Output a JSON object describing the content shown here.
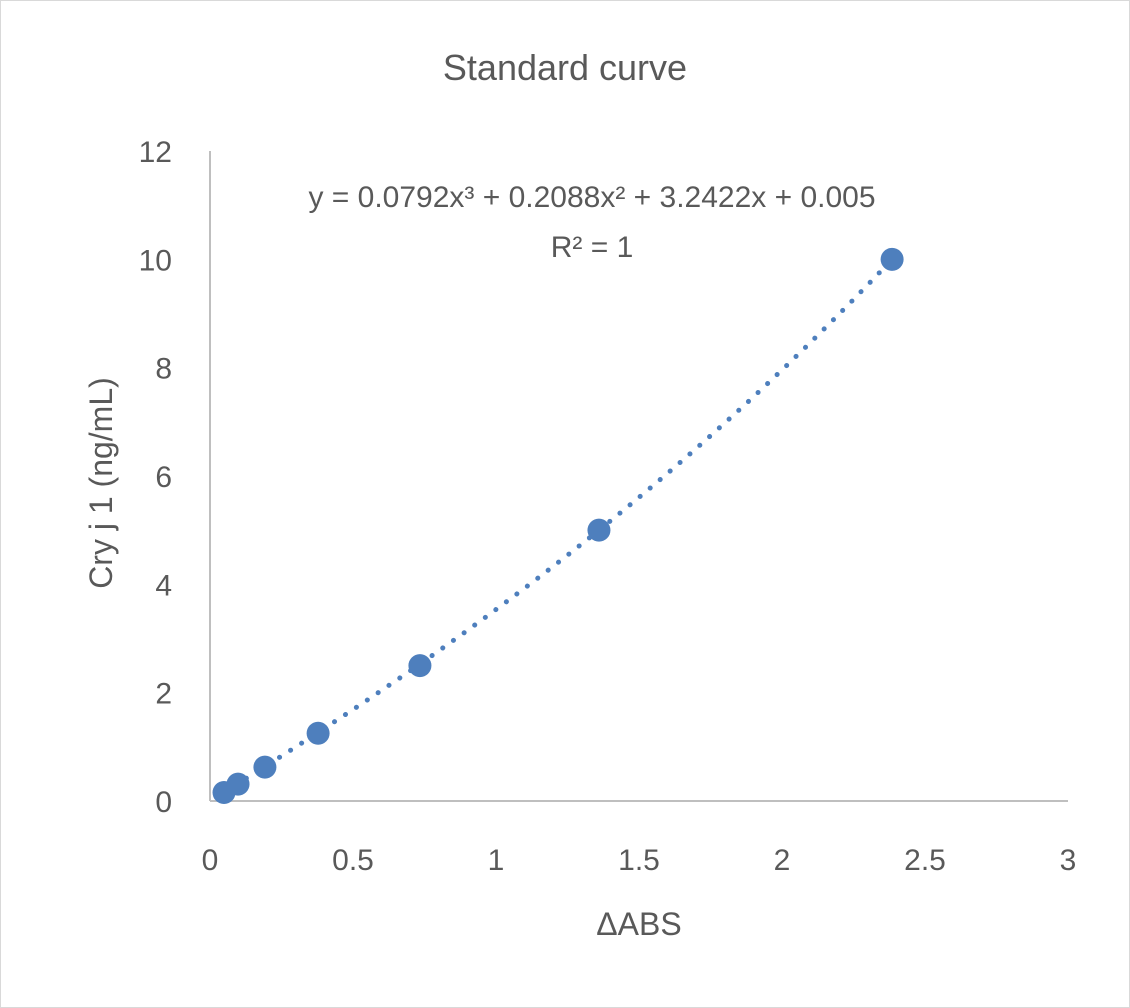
{
  "chart_data": {
    "type": "scatter",
    "title": "Standard curve",
    "xlabel": "ΔABS",
    "ylabel": "Cry j 1 (ng/mL)",
    "xlim": [
      0,
      3
    ],
    "ylim": [
      0,
      12
    ],
    "xticks": [
      "0",
      "0.5",
      "1",
      "1.5",
      "2",
      "2.5",
      "3"
    ],
    "yticks": [
      "0",
      "2",
      "4",
      "6",
      "8",
      "10",
      "12"
    ],
    "grid": false,
    "legend": "none",
    "color": "#4E7FBD",
    "points": [
      {
        "x": 0.049,
        "y": 0.156
      },
      {
        "x": 0.098,
        "y": 0.3125
      },
      {
        "x": 0.192,
        "y": 0.625
      },
      {
        "x": 0.378,
        "y": 1.25
      },
      {
        "x": 0.734,
        "y": 2.5
      },
      {
        "x": 1.36,
        "y": 5
      },
      {
        "x": 2.385,
        "y": 10
      }
    ],
    "trendline": {
      "type": "polynomial",
      "style": "dotted",
      "coefficients": [
        0.0792,
        0.2088,
        3.2422,
        0.005
      ],
      "equation": "y = 0.0792x³ + 0.2088x² + 3.2422x + 0.005",
      "r_squared_label": "R² = 1"
    }
  }
}
